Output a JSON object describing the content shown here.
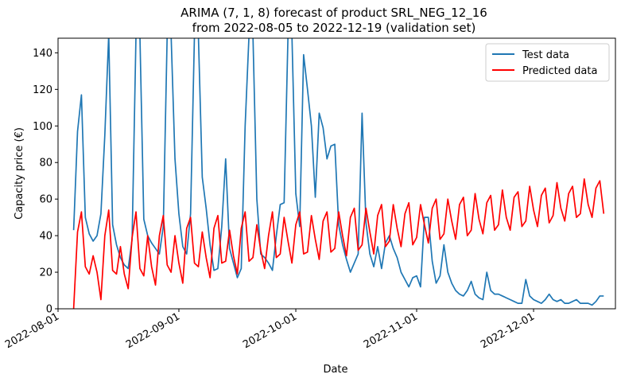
{
  "chart_data": {
    "type": "line",
    "title": "ARIMA (7, 1, 8) forecast of product SRL_NEG_12_16",
    "subtitle": "from 2022-08-05 to 2022-12-19 (validation set)",
    "xlabel": "Date",
    "ylabel": "Capacity price (€)",
    "x_start": "2022-08-05",
    "x_step_days": 1,
    "xlim": [
      "2022-08-01",
      "2022-12-22"
    ],
    "ylim": [
      0,
      148
    ],
    "x_ticks": [
      "2022-08-01",
      "2022-09-01",
      "2022-10-01",
      "2022-11-01",
      "2022-12-01"
    ],
    "y_ticks": [
      0,
      20,
      40,
      60,
      80,
      100,
      120,
      140
    ],
    "legend_position": "top-right",
    "series": [
      {
        "name": "Test data",
        "color": "#1f77b4",
        "values": [
          43,
          97,
          117,
          50,
          41,
          37,
          40,
          52,
          95,
          150,
          46,
          35,
          28,
          24,
          22,
          38,
          150,
          150,
          49,
          40,
          36,
          33,
          30,
          45,
          150,
          150,
          82,
          52,
          34,
          30,
          52,
          150,
          150,
          72,
          55,
          35,
          21,
          22,
          45,
          82,
          33,
          25,
          17,
          22,
          100,
          150,
          150,
          60,
          30,
          28,
          25,
          21,
          40,
          57,
          58,
          150,
          150,
          63,
          45,
          139,
          120,
          100,
          61,
          107,
          99,
          82,
          89,
          90,
          46,
          35,
          27,
          20,
          25,
          30,
          107,
          47,
          30,
          23,
          34,
          22,
          36,
          40,
          33,
          28,
          20,
          16,
          12,
          17,
          18,
          12,
          50,
          50,
          26,
          14,
          18,
          35,
          20,
          14,
          10,
          8,
          7,
          10,
          15,
          8,
          6,
          5,
          20,
          10,
          8,
          8,
          7,
          6,
          5,
          4,
          3,
          3,
          16,
          7,
          5,
          4,
          3,
          5,
          8,
          5,
          4,
          5,
          3,
          3,
          4,
          5,
          3,
          3,
          3,
          2,
          4,
          7,
          7
        ]
      },
      {
        "name": "Predicted data",
        "color": "#ff0000",
        "values": [
          0,
          42,
          53,
          23,
          19,
          29,
          20,
          5,
          40,
          54,
          21,
          19,
          34,
          19,
          11,
          39,
          53,
          22,
          18,
          40,
          23,
          13,
          40,
          51,
          24,
          20,
          40,
          25,
          14,
          44,
          50,
          25,
          23,
          42,
          28,
          17,
          44,
          51,
          25,
          26,
          43,
          29,
          19,
          44,
          53,
          26,
          28,
          46,
          32,
          22,
          40,
          53,
          28,
          30,
          50,
          37,
          25,
          46,
          53,
          30,
          31,
          51,
          38,
          27,
          48,
          53,
          31,
          33,
          53,
          40,
          29,
          50,
          55,
          32,
          35,
          55,
          42,
          30,
          51,
          57,
          34,
          37,
          57,
          44,
          34,
          52,
          58,
          35,
          39,
          57,
          46,
          36,
          55,
          60,
          38,
          41,
          60,
          48,
          38,
          57,
          61,
          40,
          43,
          63,
          49,
          41,
          58,
          62,
          43,
          46,
          65,
          50,
          43,
          61,
          64,
          45,
          48,
          67,
          54,
          45,
          62,
          66,
          47,
          51,
          69,
          55,
          48,
          63,
          67,
          50,
          52,
          71,
          57,
          50,
          66,
          70,
          52
        ]
      }
    ]
  }
}
